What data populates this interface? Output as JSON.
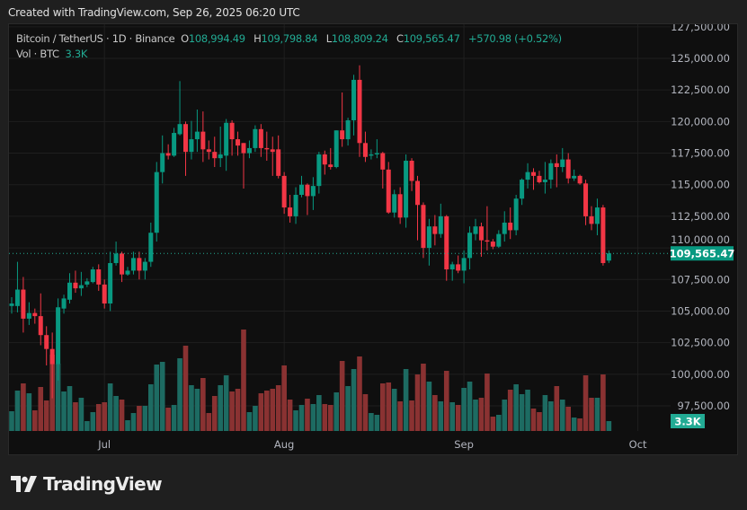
{
  "header": {
    "created_text": "Created with TradingView.com, Sep 26, 2025 06:20 UTC"
  },
  "legend": {
    "symbol": "Bitcoin / TetherUS · 1D · Binance",
    "open_label": "O",
    "open": "108,994.49",
    "high_label": "H",
    "high": "109,798.84",
    "low_label": "L",
    "low": "108,809.24",
    "close_label": "C",
    "close": "109,565.47",
    "change": "+570.98 (+0.52%)",
    "vol_label": "Vol · BTC",
    "vol": "3.3K"
  },
  "price_label": "109,565.47",
  "volume_label": "3.3K",
  "logo": {
    "text": "TradingView"
  },
  "colors": {
    "up": "#089981",
    "down": "#f23645",
    "up_volume": "#1d6b62",
    "down_volume": "#8a3232",
    "background": "#0f0f0f",
    "price_line": "#22ab94"
  },
  "chart_data": {
    "type": "candlestick",
    "title": "Bitcoin / TetherUS · 1D · Binance",
    "interval": "1D",
    "y_ticks": [
      "127,500.00",
      "125,000.00",
      "122,500.00",
      "120,000.00",
      "117,500.00",
      "115,000.00",
      "112,500.00",
      "110,000.00",
      "107,500.00",
      "105,000.00",
      "102,500.00",
      "100,000.00",
      "97,500.00"
    ],
    "y_tick_values": [
      127500,
      125000,
      122500,
      120000,
      117500,
      115000,
      112500,
      110000,
      107500,
      105000,
      102500,
      100000,
      97500
    ],
    "x_ticks": [
      {
        "label": "Jul",
        "date": "2025-07-01"
      },
      {
        "label": "Aug",
        "date": "2025-08-01"
      },
      {
        "label": "Sep",
        "date": "2025-09-01"
      },
      {
        "label": "Oct",
        "date": "2025-10-01"
      }
    ],
    "ylim": [
      97500,
      127500
    ],
    "last_price": 109565.47,
    "grid": true,
    "volume_unit": "K BTC",
    "columns": [
      "date",
      "open",
      "high",
      "low",
      "close",
      "volume"
    ],
    "candles": [
      [
        "2025-06-15",
        105400,
        106100,
        104800,
        105600,
        6.6
      ],
      [
        "2025-06-16",
        105400,
        108900,
        104900,
        106700,
        13.5
      ],
      [
        "2025-06-17",
        106700,
        107700,
        103300,
        104400,
        15.9
      ],
      [
        "2025-06-18",
        104400,
        105700,
        103900,
        104850,
        12.6
      ],
      [
        "2025-06-19",
        104850,
        105200,
        104000,
        104600,
        6.9
      ],
      [
        "2025-06-20",
        104600,
        106400,
        102300,
        103100,
        14.7
      ],
      [
        "2025-06-21",
        103100,
        103800,
        100700,
        102000,
        10.2
      ],
      [
        "2025-06-22",
        102000,
        103300,
        98100,
        100800,
        25.5
      ],
      [
        "2025-06-23",
        100800,
        106000,
        99500,
        105300,
        22.5
      ],
      [
        "2025-06-24",
        105200,
        106300,
        104800,
        106000,
        13.2
      ],
      [
        "2025-06-25",
        105900,
        108000,
        105600,
        107250,
        15.0
      ],
      [
        "2025-06-26",
        107250,
        108200,
        106450,
        106800,
        9.6
      ],
      [
        "2025-06-27",
        106800,
        108100,
        106200,
        107050,
        11.1
      ],
      [
        "2025-06-28",
        107100,
        107600,
        106900,
        107350,
        3.3
      ],
      [
        "2025-06-29",
        107300,
        108500,
        107200,
        108300,
        6.3
      ],
      [
        "2025-06-30",
        108300,
        108700,
        106600,
        107100,
        9.0
      ],
      [
        "2025-07-01",
        107100,
        107500,
        105200,
        105600,
        9.6
      ],
      [
        "2025-07-02",
        105600,
        109700,
        105000,
        108800,
        15.9
      ],
      [
        "2025-07-03",
        108800,
        110500,
        108600,
        109550,
        11.7
      ],
      [
        "2025-07-04",
        109550,
        109700,
        107300,
        107900,
        10.5
      ],
      [
        "2025-07-05",
        107900,
        108500,
        107800,
        108200,
        3.6
      ],
      [
        "2025-07-06",
        108200,
        109700,
        107900,
        109200,
        6.0
      ],
      [
        "2025-07-07",
        109200,
        109700,
        107500,
        108200,
        8.4
      ],
      [
        "2025-07-08",
        108200,
        109200,
        107500,
        108900,
        8.4
      ],
      [
        "2025-07-09",
        108900,
        112000,
        108500,
        111200,
        15.6
      ],
      [
        "2025-07-10",
        111200,
        116800,
        110500,
        116000,
        22.2
      ],
      [
        "2025-07-11",
        116000,
        118900,
        115100,
        117500,
        23.1
      ],
      [
        "2025-07-12",
        117500,
        118200,
        117000,
        117300,
        7.8
      ],
      [
        "2025-07-13",
        117300,
        119500,
        117200,
        119100,
        8.7
      ],
      [
        "2025-07-14",
        119000,
        123200,
        118900,
        119800,
        24.3
      ],
      [
        "2025-07-15",
        119800,
        120000,
        115700,
        117600,
        28.5
      ],
      [
        "2025-07-16",
        117600,
        120050,
        117000,
        118600,
        15.3
      ],
      [
        "2025-07-17",
        118600,
        120950,
        117600,
        119200,
        14.1
      ],
      [
        "2025-07-18",
        119200,
        120800,
        116800,
        117800,
        17.7
      ],
      [
        "2025-07-19",
        117800,
        118500,
        117000,
        117600,
        6.0
      ],
      [
        "2025-07-20",
        117600,
        118800,
        116400,
        117100,
        11.7
      ],
      [
        "2025-07-21",
        117100,
        119600,
        116400,
        117400,
        15.3
      ],
      [
        "2025-07-22",
        117300,
        120200,
        116100,
        119900,
        18.6
      ],
      [
        "2025-07-23",
        119900,
        120100,
        117300,
        118600,
        13.2
      ],
      [
        "2025-07-24",
        118600,
        119200,
        117300,
        118100,
        14.1
      ],
      [
        "2025-07-25",
        118300,
        118300,
        114700,
        117500,
        33.9
      ],
      [
        "2025-07-26",
        117500,
        118500,
        117100,
        117900,
        6.3
      ],
      [
        "2025-07-27",
        117900,
        119700,
        117600,
        119400,
        8.4
      ],
      [
        "2025-07-28",
        119400,
        119800,
        117200,
        117900,
        12.6
      ],
      [
        "2025-07-29",
        117900,
        119200,
        116900,
        117800,
        13.5
      ],
      [
        "2025-07-30",
        117800,
        118800,
        115700,
        117600,
        14.1
      ],
      [
        "2025-07-31",
        117800,
        118900,
        115500,
        115700,
        15.3
      ],
      [
        "2025-08-01",
        115700,
        116000,
        112700,
        113200,
        21.9
      ],
      [
        "2025-08-02",
        113200,
        114200,
        112000,
        112500,
        10.5
      ],
      [
        "2025-08-03",
        112500,
        114800,
        111900,
        114200,
        6.9
      ],
      [
        "2025-08-04",
        114200,
        115700,
        114000,
        115000,
        8.7
      ],
      [
        "2025-08-05",
        115000,
        115100,
        112600,
        114100,
        10.8
      ],
      [
        "2025-08-06",
        114100,
        115600,
        113000,
        114900,
        9.0
      ],
      [
        "2025-08-07",
        114900,
        117600,
        114300,
        117400,
        12.0
      ],
      [
        "2025-08-08",
        117400,
        117700,
        115800,
        116600,
        9.0
      ],
      [
        "2025-08-09",
        116600,
        117900,
        116200,
        116400,
        8.7
      ],
      [
        "2025-08-10",
        116400,
        119300,
        116300,
        119300,
        12.9
      ],
      [
        "2025-08-11",
        119300,
        122300,
        118000,
        118600,
        23.4
      ],
      [
        "2025-08-12",
        118600,
        120300,
        118100,
        120100,
        15.0
      ],
      [
        "2025-08-13",
        120100,
        123700,
        118900,
        123300,
        20.7
      ],
      [
        "2025-08-14",
        123300,
        124450,
        117200,
        118300,
        24.9
      ],
      [
        "2025-08-15",
        118300,
        119200,
        116800,
        117200,
        12.3
      ],
      [
        "2025-08-16",
        117300,
        117800,
        117000,
        117400,
        6.0
      ],
      [
        "2025-08-17",
        117400,
        118600,
        117100,
        117500,
        5.4
      ],
      [
        "2025-08-18",
        117500,
        117600,
        114700,
        116200,
        15.9
      ],
      [
        "2025-08-19",
        116200,
        116800,
        112700,
        112800,
        16.2
      ],
      [
        "2025-08-20",
        112800,
        114600,
        112400,
        114250,
        14.1
      ],
      [
        "2025-08-21",
        114250,
        114800,
        111900,
        112400,
        9.9
      ],
      [
        "2025-08-22",
        112400,
        117400,
        111600,
        116900,
        20.7
      ],
      [
        "2025-08-23",
        116900,
        117100,
        114500,
        115300,
        10.2
      ],
      [
        "2025-08-24",
        115300,
        115700,
        110600,
        113400,
        18.9
      ],
      [
        "2025-08-25",
        113400,
        113600,
        109200,
        110000,
        22.5
      ],
      [
        "2025-08-26",
        110000,
        112300,
        108600,
        111700,
        16.5
      ],
      [
        "2025-08-27",
        111700,
        112600,
        110200,
        111100,
        12.0
      ],
      [
        "2025-08-28",
        111100,
        113500,
        110800,
        112500,
        9.9
      ],
      [
        "2025-08-29",
        112500,
        112600,
        107400,
        108300,
        20.1
      ],
      [
        "2025-08-30",
        108300,
        108900,
        107400,
        108700,
        9.6
      ],
      [
        "2025-08-31",
        108700,
        109400,
        108000,
        108200,
        8.7
      ],
      [
        "2025-09-01",
        108200,
        109800,
        107200,
        109200,
        14.4
      ],
      [
        "2025-09-02",
        109200,
        111700,
        108300,
        111200,
        16.5
      ],
      [
        "2025-09-03",
        111100,
        112300,
        110600,
        111700,
        10.5
      ],
      [
        "2025-09-04",
        111700,
        112000,
        109300,
        110600,
        11.1
      ],
      [
        "2025-09-05",
        110600,
        113300,
        109800,
        110500,
        19.2
      ],
      [
        "2025-09-06",
        110500,
        110700,
        109900,
        110100,
        4.8
      ],
      [
        "2025-09-07",
        110100,
        111400,
        110000,
        111100,
        5.4
      ],
      [
        "2025-09-08",
        111100,
        112900,
        110500,
        112000,
        10.5
      ],
      [
        "2025-09-09",
        112000,
        113200,
        110700,
        111400,
        13.8
      ],
      [
        "2025-09-10",
        111400,
        114200,
        111000,
        113900,
        15.6
      ],
      [
        "2025-09-11",
        113900,
        115500,
        113400,
        115400,
        12.3
      ],
      [
        "2025-09-12",
        115400,
        116700,
        114700,
        116000,
        13.8
      ],
      [
        "2025-09-13",
        116000,
        116300,
        114600,
        115700,
        7.5
      ],
      [
        "2025-09-14",
        115700,
        116100,
        115100,
        115200,
        6.3
      ],
      [
        "2025-09-15",
        115200,
        116800,
        114300,
        115400,
        12.0
      ],
      [
        "2025-09-16",
        115400,
        117000,
        114700,
        116700,
        9.9
      ],
      [
        "2025-09-17",
        116700,
        117400,
        114800,
        116400,
        15.0
      ],
      [
        "2025-09-18",
        116400,
        117900,
        116000,
        117000,
        10.5
      ],
      [
        "2025-09-19",
        117000,
        117500,
        115100,
        115500,
        8.1
      ],
      [
        "2025-09-20",
        115500,
        116200,
        115300,
        115700,
        4.5
      ],
      [
        "2025-09-21",
        115700,
        115800,
        115000,
        115100,
        4.2
      ],
      [
        "2025-09-22",
        115100,
        115400,
        111800,
        112500,
        18.6
      ],
      [
        "2025-09-23",
        112500,
        113300,
        111400,
        111900,
        11.1
      ],
      [
        "2025-09-24",
        111900,
        113900,
        111000,
        113200,
        11.1
      ],
      [
        "2025-09-25",
        113200,
        113400,
        108600,
        108800,
        18.9
      ],
      [
        "2025-09-26",
        108994.49,
        109798.84,
        108809.24,
        109565.47,
        3.3
      ]
    ]
  }
}
